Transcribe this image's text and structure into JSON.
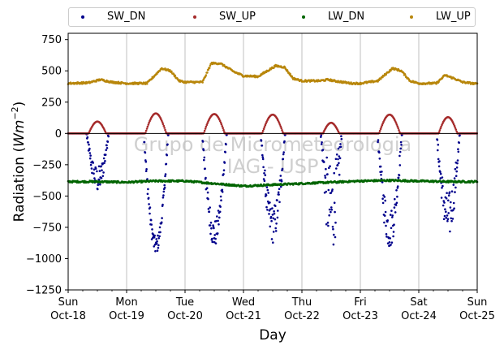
{
  "chart_data": {
    "type": "scatter",
    "xlabel": "Day",
    "ylabel_prefix": "Radiation (",
    "ylabel_unit": "Wm",
    "ylabel_exp": "−2",
    "ylabel_suffix": ")",
    "ylim": [
      -1250,
      800
    ],
    "xlim": [
      0,
      7
    ],
    "yticks": [
      -1250,
      -1000,
      -750,
      -500,
      -250,
      0,
      250,
      500,
      750
    ],
    "yticklabels": [
      "−1250",
      "−1000",
      "−750",
      "−500",
      "−250",
      "0",
      "250",
      "500",
      "750"
    ],
    "xticks": [
      {
        "x": 0,
        "day": "Sun",
        "date": "Oct-18"
      },
      {
        "x": 1,
        "day": "Mon",
        "date": "Oct-19"
      },
      {
        "x": 2,
        "day": "Tue",
        "date": "Oct-20"
      },
      {
        "x": 3,
        "day": "Wed",
        "date": "Oct-21"
      },
      {
        "x": 4,
        "day": "Thu",
        "date": "Oct-22"
      },
      {
        "x": 5,
        "day": "Fri",
        "date": "Oct-23"
      },
      {
        "x": 6,
        "day": "Sat",
        "date": "Oct-24"
      },
      {
        "x": 7,
        "day": "Sun",
        "date": "Oct-25"
      }
    ],
    "grid": "vertical",
    "legend_position": "top",
    "watermark": [
      "Grupo de Micrometeorologia",
      "IAG - USP"
    ],
    "series": [
      {
        "name": "SW_DN",
        "color": "#00008b",
        "days": [
          {
            "peak": -480,
            "noise": 0.45,
            "width": 0.38
          },
          {
            "peak": -970,
            "noise": 0.15,
            "width": 0.42
          },
          {
            "peak": -920,
            "noise": 0.25,
            "width": 0.42
          },
          {
            "peak": -880,
            "noise": 0.35,
            "width": 0.42
          },
          {
            "peak": -980,
            "noise": 0.75,
            "width": 0.36
          },
          {
            "peak": -930,
            "noise": 0.35,
            "width": 0.42
          },
          {
            "peak": -850,
            "noise": 0.45,
            "width": 0.4
          }
        ]
      },
      {
        "name": "SW_UP",
        "color": "#a52a2a",
        "days": [
          {
            "peak": 95,
            "width": 0.3
          },
          {
            "peak": 160,
            "width": 0.36
          },
          {
            "peak": 155,
            "width": 0.36
          },
          {
            "peak": 150,
            "width": 0.36
          },
          {
            "peak": 85,
            "width": 0.28
          },
          {
            "peak": 150,
            "width": 0.36
          },
          {
            "peak": 130,
            "width": 0.32
          }
        ]
      },
      {
        "name": "LW_DN",
        "color": "#006400",
        "points": [
          [
            0,
            -385
          ],
          [
            0.5,
            -385
          ],
          [
            1.0,
            -390
          ],
          [
            1.5,
            -380
          ],
          [
            2.0,
            -380
          ],
          [
            2.5,
            -400
          ],
          [
            3.0,
            -420
          ],
          [
            3.5,
            -410
          ],
          [
            4.0,
            -400
          ],
          [
            4.5,
            -390
          ],
          [
            5.0,
            -380
          ],
          [
            5.5,
            -375
          ],
          [
            6.0,
            -380
          ],
          [
            6.5,
            -385
          ],
          [
            7.0,
            -385
          ]
        ]
      },
      {
        "name": "LW_UP",
        "color": "#b8860b",
        "points": [
          [
            0,
            400
          ],
          [
            0.35,
            405
          ],
          [
            0.55,
            430
          ],
          [
            0.75,
            410
          ],
          [
            1.0,
            400
          ],
          [
            1.35,
            400
          ],
          [
            1.6,
            520
          ],
          [
            1.75,
            500
          ],
          [
            1.9,
            420
          ],
          [
            2.0,
            410
          ],
          [
            2.3,
            410
          ],
          [
            2.45,
            560
          ],
          [
            2.6,
            560
          ],
          [
            2.85,
            490
          ],
          [
            3.0,
            460
          ],
          [
            3.25,
            455
          ],
          [
            3.55,
            540
          ],
          [
            3.7,
            530
          ],
          [
            3.85,
            440
          ],
          [
            4.0,
            420
          ],
          [
            4.3,
            420
          ],
          [
            4.45,
            430
          ],
          [
            4.55,
            420
          ],
          [
            4.85,
            400
          ],
          [
            5.0,
            400
          ],
          [
            5.3,
            420
          ],
          [
            5.55,
            520
          ],
          [
            5.7,
            500
          ],
          [
            5.85,
            420
          ],
          [
            6.0,
            400
          ],
          [
            6.3,
            400
          ],
          [
            6.45,
            465
          ],
          [
            6.6,
            440
          ],
          [
            6.75,
            410
          ],
          [
            7.0,
            395
          ]
        ]
      }
    ]
  }
}
